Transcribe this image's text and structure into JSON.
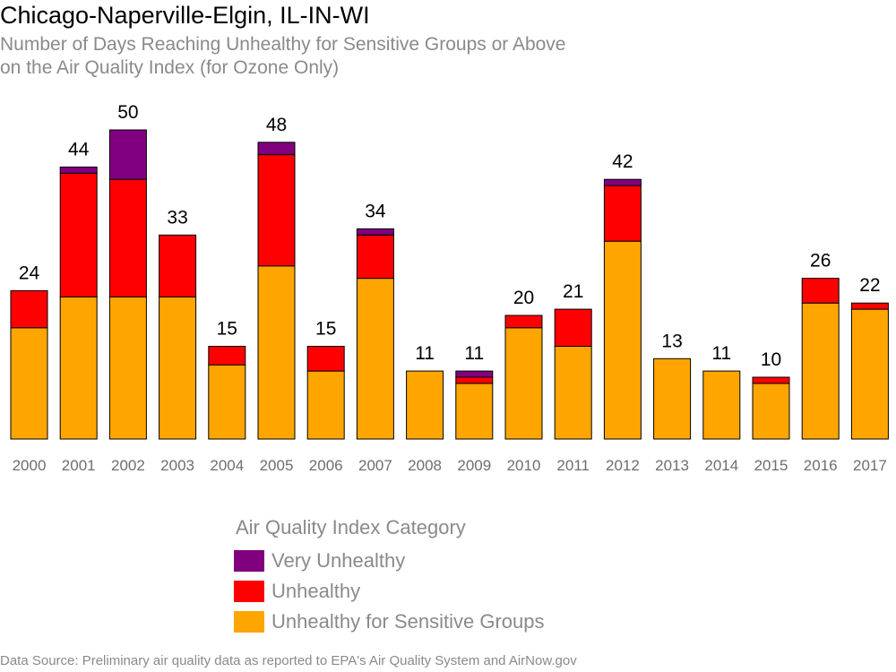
{
  "header": {
    "title": "Chicago-Naperville-Elgin, IL-IN-WI",
    "subtitle_line1": "Number of Days Reaching Unhealthy for Sensitive Groups or Above",
    "subtitle_line2": "on the Air Quality Index (for Ozone Only)"
  },
  "legend": {
    "title": "Air Quality Index Category",
    "items": [
      {
        "label": "Very Unhealthy",
        "color": "#800080"
      },
      {
        "label": "Unhealthy",
        "color": "#ff0000"
      },
      {
        "label": "Unhealthy for Sensitive Groups",
        "color": "#ffa500"
      }
    ]
  },
  "footer": {
    "source": "Data Source: Preliminary air quality data as reported to EPA's Air Quality System and AirNow.gov"
  },
  "chart_data": {
    "type": "bar",
    "stacked": true,
    "title": "Chicago-Naperville-Elgin, IL-IN-WI",
    "subtitle": "Number of Days Reaching Unhealthy for Sensitive Groups or Above on the Air Quality Index (for Ozone Only)",
    "xlabel": "",
    "ylabel": "",
    "ylim": [
      0,
      50
    ],
    "grid": false,
    "legend_position": "bottom",
    "categories": [
      "2000",
      "2001",
      "2002",
      "2003",
      "2004",
      "2005",
      "2006",
      "2007",
      "2008",
      "2009",
      "2010",
      "2011",
      "2012",
      "2013",
      "2014",
      "2015",
      "2016",
      "2017"
    ],
    "series": [
      {
        "name": "Unhealthy for Sensitive Groups",
        "color": "#ffa500",
        "values": [
          18,
          23,
          23,
          23,
          12,
          28,
          11,
          26,
          11,
          9,
          18,
          15,
          32,
          13,
          11,
          9,
          22,
          21
        ]
      },
      {
        "name": "Unhealthy",
        "color": "#ff0000",
        "values": [
          6,
          20,
          19,
          10,
          3,
          18,
          4,
          7,
          0,
          1,
          2,
          6,
          9,
          0,
          0,
          1,
          4,
          1
        ]
      },
      {
        "name": "Very Unhealthy",
        "color": "#800080",
        "values": [
          0,
          1,
          8,
          0,
          0,
          2,
          0,
          1,
          0,
          1,
          0,
          0,
          1,
          0,
          0,
          0,
          0,
          0
        ]
      }
    ],
    "totals": [
      24,
      44,
      50,
      33,
      15,
      48,
      15,
      34,
      11,
      11,
      20,
      21,
      42,
      13,
      11,
      10,
      26,
      22
    ]
  }
}
